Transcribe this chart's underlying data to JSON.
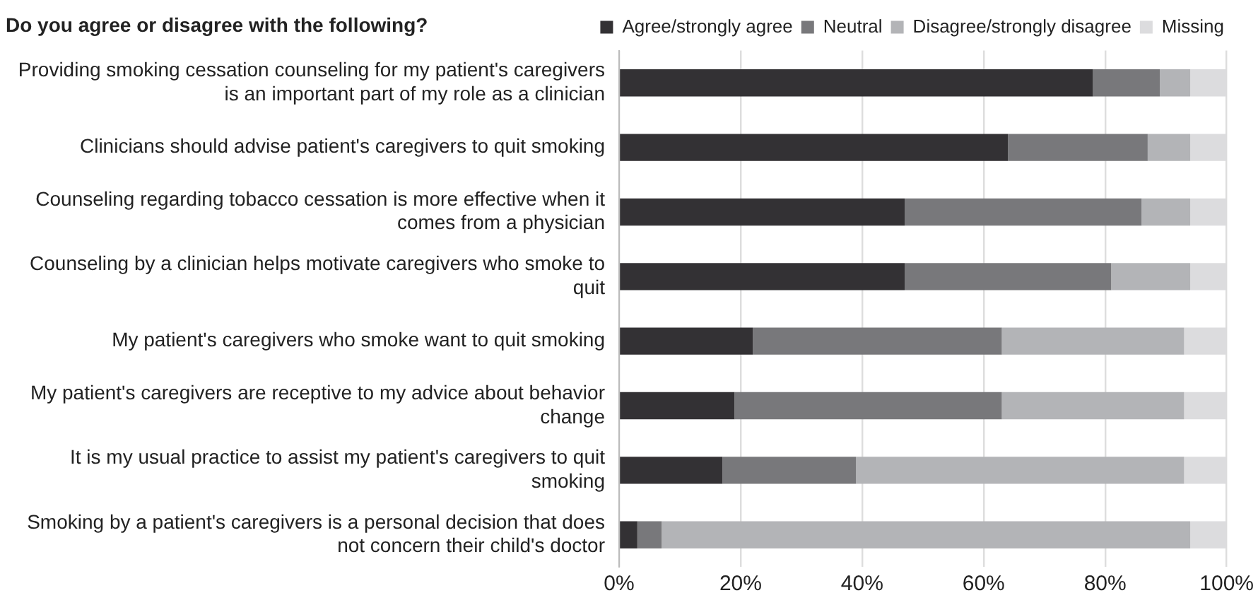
{
  "chart_data": {
    "type": "bar",
    "orientation": "horizontal",
    "stacked": true,
    "title": "Do you agree or disagree with the following?",
    "categories": [
      "Providing smoking cessation counseling for my patient's caregivers is an important part of my role as a clinician",
      "Clinicians should advise patient's caregivers to quit smoking",
      "Counseling regarding tobacco cessation is more effective when it comes from a physician",
      "Counseling by a clinician helps motivate caregivers who smoke to quit",
      "My patient's caregivers who smoke want to quit smoking",
      "My patient's caregivers are receptive to my advice about behavior change",
      "It is my usual practice to assist my patient's caregivers to quit smoking",
      "Smoking by a patient's caregivers is a personal decision that does not concern their child's doctor"
    ],
    "series": [
      {
        "name": "Agree/strongly agree",
        "color": "#333134",
        "values": [
          78,
          64,
          47,
          47,
          22,
          19,
          17,
          3
        ]
      },
      {
        "name": "Neutral",
        "color": "#78787b",
        "values": [
          11,
          23,
          39,
          34,
          41,
          44,
          22,
          4
        ]
      },
      {
        "name": "Disagree/strongly disagree",
        "color": "#b3b4b7",
        "values": [
          5,
          7,
          8,
          13,
          30,
          30,
          54,
          87
        ]
      },
      {
        "name": "Missing",
        "color": "#dcdcde",
        "values": [
          6,
          6,
          6,
          6,
          7,
          7,
          7,
          6
        ]
      }
    ],
    "xlim": [
      0,
      100
    ],
    "xticks": [
      {
        "value": 0,
        "label": "0%"
      },
      {
        "value": 20,
        "label": "20%"
      },
      {
        "value": 40,
        "label": "40%"
      },
      {
        "value": 60,
        "label": "60%"
      },
      {
        "value": 80,
        "label": "80%"
      },
      {
        "value": 100,
        "label": "100%"
      }
    ],
    "grid": "x",
    "legend": "top right"
  }
}
